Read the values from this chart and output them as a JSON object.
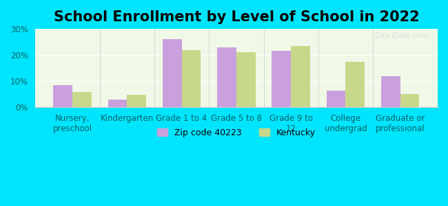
{
  "title": "School Enrollment by Level of School in 2022",
  "categories": [
    "Nursery,\npreschool",
    "Kindergarten",
    "Grade 1 to 4",
    "Grade 5 to 8",
    "Grade 9 to\n12",
    "College\nundergrad",
    "Graduate or\nprofessional"
  ],
  "zip_values": [
    8.5,
    3.0,
    26.0,
    23.0,
    21.5,
    6.5,
    12.0
  ],
  "ky_values": [
    6.0,
    4.8,
    22.0,
    21.0,
    23.5,
    17.5,
    5.2
  ],
  "zip_color": "#c9a0dc",
  "ky_color": "#c8d88a",
  "background_outer": "#00e5ff",
  "background_inner": "#f0f8e8",
  "ylim": [
    0,
    30
  ],
  "yticks": [
    0,
    10,
    20,
    30
  ],
  "ytick_labels": [
    "0%",
    "10%",
    "20%",
    "30%"
  ],
  "zip_label": "Zip code 40223",
  "ky_label": "Kentucky",
  "watermark": "City-Data.com",
  "title_fontsize": 15,
  "tick_fontsize": 8.5,
  "legend_fontsize": 9,
  "bar_width": 0.35
}
